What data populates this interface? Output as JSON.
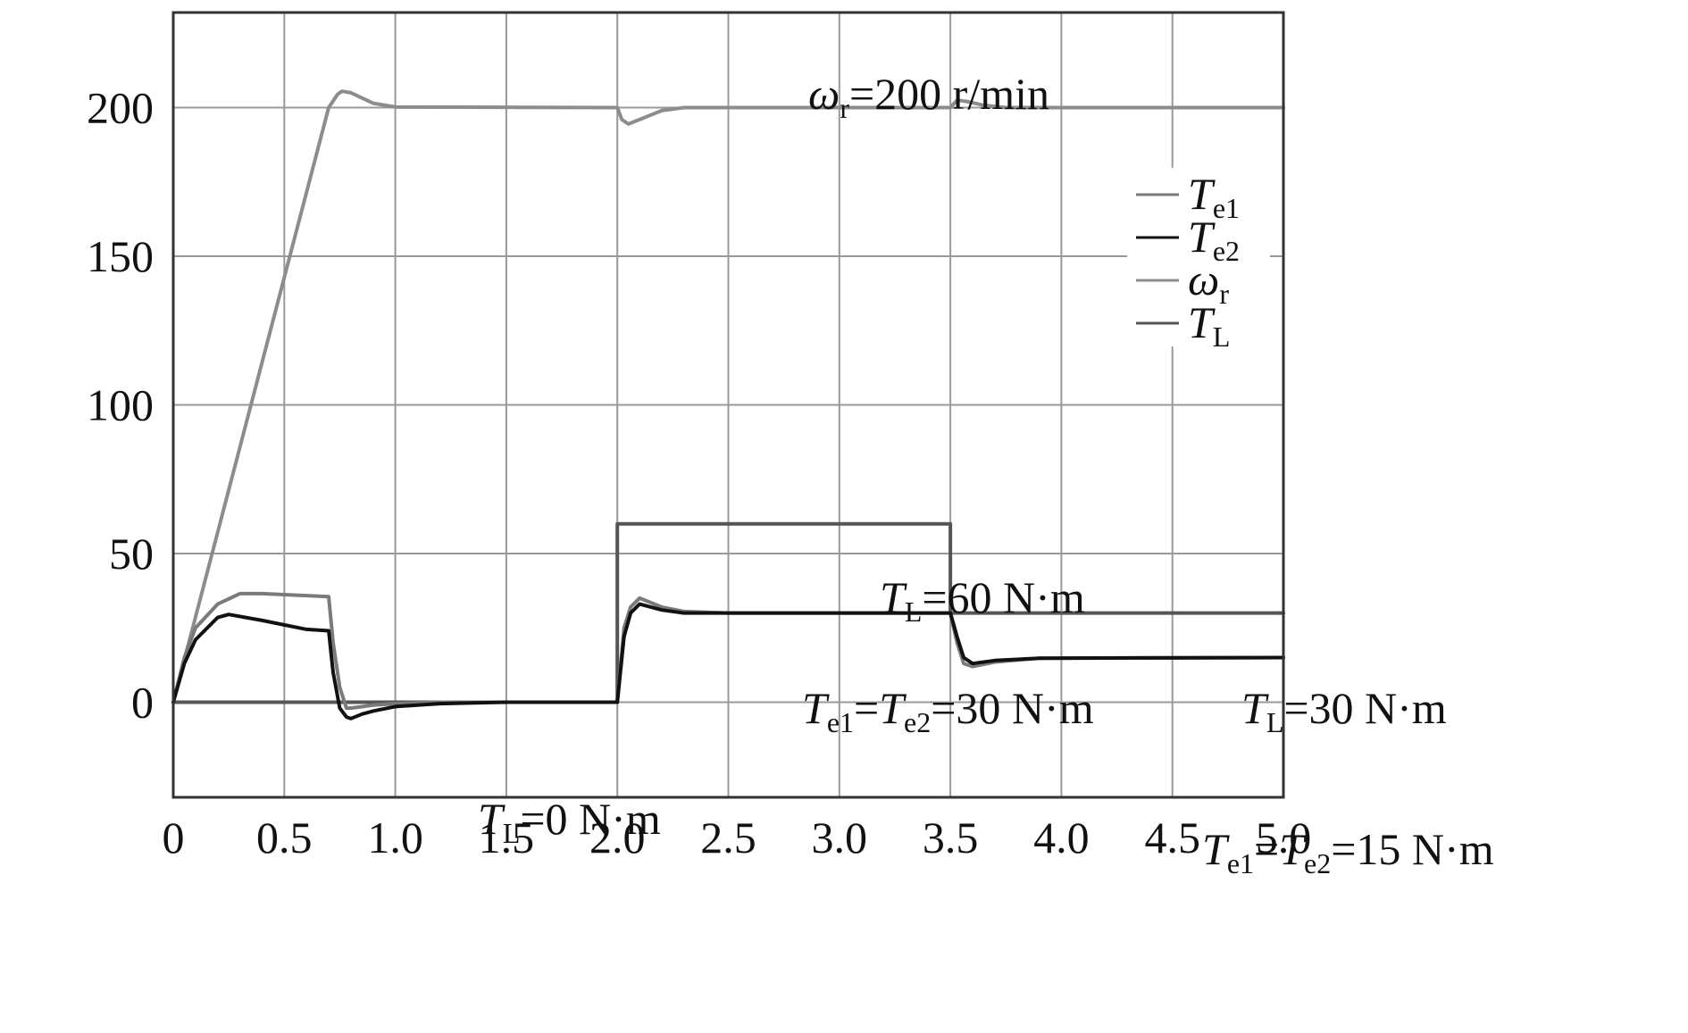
{
  "chart_data": {
    "type": "line",
    "xlim": [
      0,
      5.0
    ],
    "ylim": [
      -32,
      232
    ],
    "grid": true,
    "legend_position": "top-right",
    "x_ticks": [
      "0",
      "0.5",
      "1.0",
      "1.5",
      "2.0",
      "2.5",
      "3.0",
      "3.5",
      "4.0",
      "4.5",
      "5.0"
    ],
    "y_ticks": [
      "0",
      "50",
      "100",
      "150",
      "200"
    ],
    "y_tick_values": [
      0,
      50,
      100,
      150,
      200
    ],
    "legend": [
      {
        "symbol": "T",
        "sub": "e1",
        "color": "#7a7a7a"
      },
      {
        "symbol": "T",
        "sub": "e2",
        "color": "#111111"
      },
      {
        "symbol": "ω",
        "sub": "r",
        "color": "#8c8c8c"
      },
      {
        "symbol": "T",
        "sub": "L",
        "color": "#555555"
      }
    ],
    "annotations": [
      {
        "main": "ω",
        "sub": "r",
        "rest": "=200 r/min"
      },
      {
        "main": "T",
        "sub": "L",
        "rest": "=60 N·m"
      },
      {
        "main": "T",
        "sub": "L",
        "rest": "=30 N·m"
      },
      {
        "main": "T",
        "sub": "L",
        "rest": "=0 N·m"
      },
      {
        "main": "T",
        "sub": "e1",
        "mid": "=",
        "main2": "T",
        "sub2": "e2",
        "rest": "=30 N·m"
      },
      {
        "main": "T",
        "sub": "e1",
        "mid": "=",
        "main2": "T",
        "sub2": "e2",
        "rest": "=15 N·m"
      }
    ],
    "series": [
      {
        "color": "#8c8c8c",
        "x": [
          0,
          0.7,
          0.74,
          0.76,
          0.8,
          0.9,
          1.0,
          2.0,
          2.02,
          2.05,
          2.1,
          2.2,
          2.3,
          3.5,
          3.53,
          3.58,
          3.65,
          3.75,
          5.0
        ],
        "y": [
          0,
          200,
          204.5,
          205.5,
          205,
          201.5,
          200.2,
          200,
          196,
          194.5,
          196,
          199,
          200,
          200,
          202.5,
          202,
          200.8,
          200,
          200
        ]
      },
      {
        "color": "#555555",
        "x": [
          0,
          2.0,
          2.0,
          3.5,
          3.5,
          5.0
        ],
        "y": [
          0,
          0,
          60,
          60,
          30,
          30
        ]
      },
      {
        "color": "#7a7a7a",
        "x": [
          0,
          0.05,
          0.1,
          0.2,
          0.3,
          0.4,
          0.7,
          0.72,
          0.75,
          0.78,
          0.8,
          0.9,
          1.0,
          1.2,
          1.5,
          2.0,
          2.03,
          2.06,
          2.1,
          2.2,
          2.3,
          2.5,
          3.5,
          3.53,
          3.56,
          3.6,
          3.7,
          3.9,
          5.0
        ],
        "y": [
          0,
          15,
          25,
          33,
          36.5,
          36.5,
          35.5,
          20,
          5,
          -2,
          -2,
          -1,
          -0.5,
          0,
          0,
          0,
          25,
          32,
          35,
          32,
          30.5,
          30,
          30,
          20,
          13,
          12,
          13.5,
          14.8,
          15
        ]
      },
      {
        "color": "#111111",
        "x": [
          0,
          0.05,
          0.1,
          0.2,
          0.25,
          0.4,
          0.6,
          0.7,
          0.72,
          0.75,
          0.78,
          0.8,
          0.85,
          0.9,
          1.0,
          1.2,
          1.5,
          2.0,
          2.03,
          2.06,
          2.1,
          2.2,
          2.3,
          2.5,
          3.5,
          3.53,
          3.56,
          3.6,
          3.7,
          3.9,
          5.0
        ],
        "y": [
          0,
          13,
          21,
          28.5,
          29.5,
          27.5,
          24.5,
          24,
          10,
          -2,
          -5,
          -5.5,
          -4,
          -3,
          -1.5,
          -0.5,
          0,
          0,
          22,
          30,
          33,
          31,
          30,
          30,
          30,
          22,
          15,
          13,
          14,
          14.8,
          15
        ]
      }
    ]
  }
}
